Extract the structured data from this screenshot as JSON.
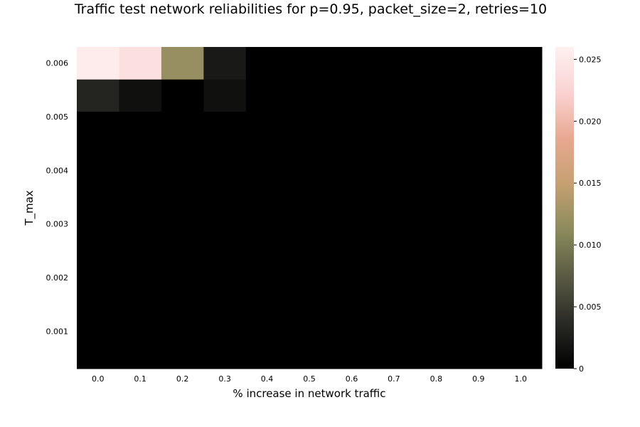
{
  "chart_data": {
    "type": "heatmap",
    "title": "Traffic test network reliabilities for p=0.95, packet_size=2, retries=10",
    "xlabel": "% increase in network traffic",
    "ylabel": "T_max",
    "x": [
      0.0,
      0.1,
      0.2,
      0.3,
      0.4,
      0.5,
      0.6,
      0.7,
      0.8,
      0.9,
      1.0
    ],
    "x_tick_labels": [
      "0.0",
      "0.1",
      "0.2",
      "0.3",
      "0.4",
      "0.5",
      "0.6",
      "0.7",
      "0.8",
      "0.9",
      "1.0"
    ],
    "y": [
      0.0005,
      0.0011,
      0.0017,
      0.0023,
      0.0029,
      0.0035,
      0.0041,
      0.0047,
      0.0053,
      0.0059
    ],
    "y_tick_values": [
      0.001,
      0.002,
      0.003,
      0.004,
      0.005,
      0.006
    ],
    "y_tick_labels": [
      "0.001",
      "0.002",
      "0.003",
      "0.004",
      "0.005",
      "0.006"
    ],
    "ylim": [
      0.0003,
      0.0063
    ],
    "z": [
      [
        0,
        0,
        0,
        0,
        0,
        0,
        0,
        0,
        0,
        0,
        0
      ],
      [
        0,
        0,
        0,
        0,
        0,
        0,
        0,
        0,
        0,
        0,
        0
      ],
      [
        0,
        0,
        0,
        0,
        0,
        0,
        0,
        0,
        0,
        0,
        0
      ],
      [
        0,
        0,
        0,
        0,
        0,
        0,
        0,
        0,
        0,
        0,
        0
      ],
      [
        0,
        0,
        0,
        0,
        0,
        0,
        0,
        0,
        0,
        0,
        0
      ],
      [
        0,
        0,
        0,
        0,
        0,
        0,
        0,
        0,
        0,
        0,
        0
      ],
      [
        0,
        0,
        0,
        0,
        0,
        0,
        0,
        0,
        0,
        0,
        0
      ],
      [
        0,
        0,
        0,
        0,
        0,
        0,
        0,
        0,
        0,
        0,
        0
      ],
      [
        0.0032,
        0.0014,
        0,
        0.0014,
        0,
        0,
        0,
        0,
        0,
        0,
        0
      ],
      [
        0.0255,
        0.024,
        0.012,
        0.0022,
        0,
        0,
        0,
        0,
        0,
        0,
        0
      ]
    ],
    "colorbar": {
      "zlim": [
        0,
        0.026
      ],
      "tick_values": [
        0,
        0.005,
        0.01,
        0.015,
        0.02,
        0.025
      ],
      "tick_labels": [
        "0",
        "0.005",
        "0.010",
        "0.015",
        "0.020",
        "0.025"
      ]
    },
    "colormap": [
      "#000000",
      "#2a2a26",
      "#5a5a44",
      "#8a8a5c",
      "#c4a070",
      "#e8a890",
      "#fad2d2",
      "#fff0f0"
    ],
    "grid": false,
    "legend": "colorbar-right"
  }
}
